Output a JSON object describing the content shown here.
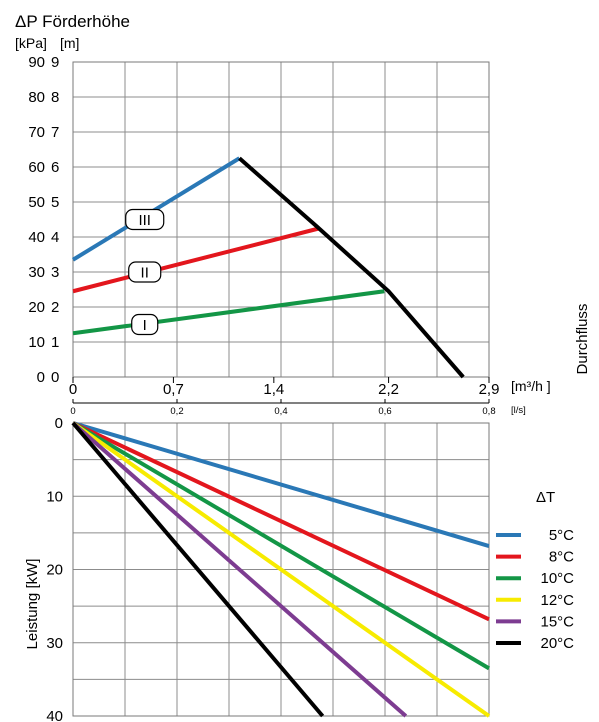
{
  "colors": {
    "blue": "#2a78b6",
    "red": "#e3161d",
    "green": "#139646",
    "yellow": "#f7eb00",
    "purple": "#7d3c91",
    "black": "#000000",
    "grid": "#8c8c8c"
  },
  "chart_data": [
    {
      "type": "line",
      "title": "ΔP  Förderhöhe",
      "y_unit_primary": "[kPa]",
      "y_unit_secondary": "[m]",
      "x_unit_primary": "[m³/h ]",
      "x_unit_secondary": "[l/s]",
      "side_label": "Durchfluss",
      "xlim": [
        0,
        2.9
      ],
      "ylim": [
        0,
        90
      ],
      "x_ticks": [
        "0",
        "0,7",
        "1,4",
        "2,2",
        "2,9"
      ],
      "x_tick_values": [
        0,
        0.7,
        1.4,
        2.2,
        2.9
      ],
      "x_ticks_secondary": [
        "0",
        "0,2",
        "0,4",
        "0,6",
        "0,8"
      ],
      "x_tick_secondary_values": [
        0,
        0.2,
        0.4,
        0.6,
        0.8
      ],
      "y_ticks_kpa": [
        "0",
        "10",
        "20",
        "30",
        "40",
        "50",
        "60",
        "70",
        "80",
        "90"
      ],
      "y_ticks_m": [
        "0",
        "1",
        "2",
        "3",
        "4",
        "5",
        "6",
        "7",
        "8",
        "9"
      ],
      "y_tick_values": [
        0,
        10,
        20,
        30,
        40,
        50,
        60,
        70,
        80,
        90
      ],
      "grid": true,
      "series": [
        {
          "name": "I",
          "color": "green",
          "x": [
            0,
            2.17
          ],
          "y": [
            12.5,
            24.5
          ],
          "label_at": [
            0.5,
            15
          ]
        },
        {
          "name": "II",
          "color": "red",
          "x": [
            0,
            1.72
          ],
          "y": [
            24.5,
            42.5
          ],
          "label_at": [
            0.5,
            30
          ]
        },
        {
          "name": "III",
          "color": "blue",
          "x": [
            0,
            1.16
          ],
          "y": [
            33.5,
            62.5
          ],
          "label_at": [
            0.5,
            45
          ]
        },
        {
          "name": "",
          "color": "black",
          "x": [
            1.16,
            1.7,
            2.2,
            2.72
          ],
          "y": [
            62.5,
            43,
            24.5,
            0
          ]
        }
      ]
    },
    {
      "type": "line",
      "ylabel": "Leistung [kW]",
      "xlim": [
        0,
        0.8
      ],
      "ylim": [
        0,
        40
      ],
      "y_ticks": [
        "0",
        "10",
        "20",
        "30",
        "40"
      ],
      "y_tick_values": [
        0,
        10,
        20,
        30,
        40
      ],
      "grid": true,
      "legend_title": "ΔT",
      "legend_position": "right",
      "series": [
        {
          "name": "5°C",
          "color": "blue",
          "x": [
            0,
            0.8
          ],
          "y": [
            0,
            16.8
          ]
        },
        {
          "name": "8°C",
          "color": "red",
          "x": [
            0,
            0.8
          ],
          "y": [
            0,
            26.8
          ]
        },
        {
          "name": "10°C",
          "color": "green",
          "x": [
            0,
            0.8
          ],
          "y": [
            0,
            33.5
          ]
        },
        {
          "name": "12°C",
          "color": "yellow",
          "x": [
            0,
            0.8
          ],
          "y": [
            0,
            40
          ]
        },
        {
          "name": "15°C",
          "color": "purple",
          "x": [
            0,
            0.64
          ],
          "y": [
            0,
            40
          ]
        },
        {
          "name": "20°C",
          "color": "black",
          "x": [
            0,
            0.48
          ],
          "y": [
            0,
            40
          ]
        }
      ]
    }
  ]
}
